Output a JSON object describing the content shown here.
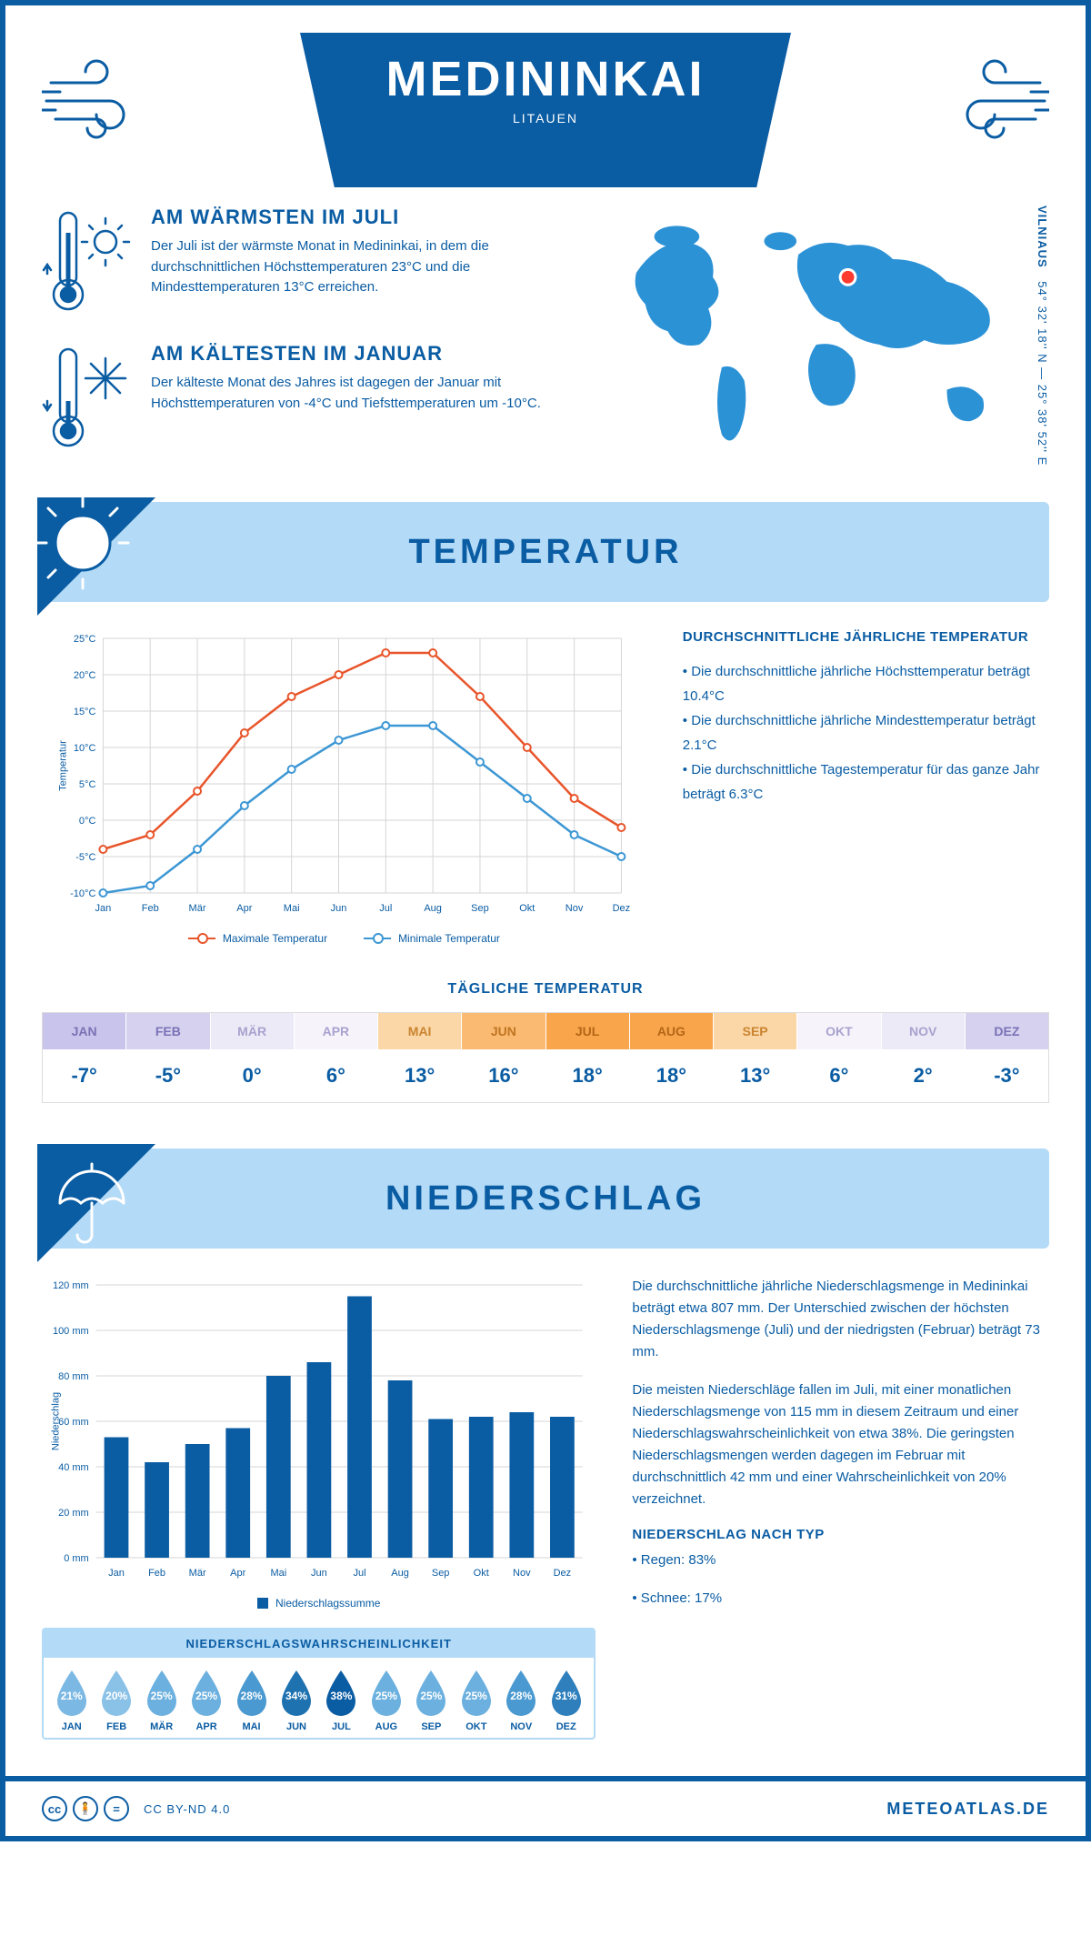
{
  "header": {
    "city": "MEDININKAI",
    "country": "LITAUEN",
    "coords_line": "54° 32' 18'' N — 25° 38' 52'' E",
    "city_label": "VILNIAUS"
  },
  "colors": {
    "brand": "#0a5ca3",
    "light_blue": "#b3daf6",
    "map_fill": "#2c92d6",
    "marker": "#ff3b2f",
    "max_line": "#e8552b",
    "min_line": "#3d97d4",
    "grid": "#d5d5d5",
    "bar": "#0a5ca3"
  },
  "facts": {
    "warm": {
      "title": "AM WÄRMSTEN IM JULI",
      "body": "Der Juli ist der wärmste Monat in Medininkai, in dem die durchschnittlichen Höchsttemperaturen 23°C und die Mindesttemperaturen 13°C erreichen."
    },
    "cold": {
      "title": "AM KÄLTESTEN IM JANUAR",
      "body": "Der kälteste Monat des Jahres ist dagegen der Januar mit Höchsttemperaturen von -4°C und Tiefsttemperaturen um -10°C."
    }
  },
  "sections": {
    "temperature": "TEMPERATUR",
    "precipitation": "NIEDERSCHLAG"
  },
  "temp_chart": {
    "months": [
      "Jan",
      "Feb",
      "Mär",
      "Apr",
      "Mai",
      "Jun",
      "Jul",
      "Aug",
      "Sep",
      "Okt",
      "Nov",
      "Dez"
    ],
    "max": [
      -4,
      -2,
      4,
      12,
      17,
      20,
      23,
      23,
      17,
      10,
      3,
      -1
    ],
    "min": [
      -10,
      -9,
      -4,
      2,
      7,
      11,
      13,
      13,
      8,
      3,
      -2,
      -5
    ],
    "ylim": [
      -10,
      25
    ],
    "ytick_step": 5,
    "ylabel": "Temperatur",
    "legend_max": "Maximale Temperatur",
    "legend_min": "Minimale Temperatur"
  },
  "temp_text": {
    "title": "DURCHSCHNITTLICHE JÄHRLICHE TEMPERATUR",
    "b1": "• Die durchschnittliche jährliche Höchsttemperatur beträgt 10.4°C",
    "b2": "• Die durchschnittliche jährliche Mindesttemperatur beträgt 2.1°C",
    "b3": "• Die durchschnittliche Tagestemperatur für das ganze Jahr beträgt 6.3°C"
  },
  "daily": {
    "title": "TÄGLICHE TEMPERATUR",
    "months": [
      "JAN",
      "FEB",
      "MÄR",
      "APR",
      "MAI",
      "JUN",
      "JUL",
      "AUG",
      "SEP",
      "OKT",
      "NOV",
      "DEZ"
    ],
    "vals": [
      "-7°",
      "-5°",
      "0°",
      "6°",
      "13°",
      "16°",
      "18°",
      "18°",
      "13°",
      "6°",
      "2°",
      "-3°"
    ],
    "head_colors": [
      "#c9c4eb",
      "#d5d1ef",
      "#eceaf6",
      "#f6f4fa",
      "#fbd6a6",
      "#faba72",
      "#f8a54c",
      "#f8a54c",
      "#fbd6a6",
      "#f6f4fa",
      "#eceaf6",
      "#d5d1ef"
    ],
    "head_text_colors": [
      "#7a72b5",
      "#7a72b5",
      "#a8a2cf",
      "#a8a2cf",
      "#c98430",
      "#c07420",
      "#b56615",
      "#b56615",
      "#c98430",
      "#a8a2cf",
      "#a8a2cf",
      "#7a72b5"
    ]
  },
  "precip_chart": {
    "months": [
      "Jan",
      "Feb",
      "Mär",
      "Apr",
      "Mai",
      "Jun",
      "Jul",
      "Aug",
      "Sep",
      "Okt",
      "Nov",
      "Dez"
    ],
    "values": [
      53,
      42,
      50,
      57,
      80,
      86,
      115,
      78,
      61,
      62,
      64,
      62
    ],
    "ylim": [
      0,
      120
    ],
    "ytick_step": 20,
    "ylabel": "Niederschlag",
    "legend": "Niederschlagssumme"
  },
  "precip_text": {
    "p1": "Die durchschnittliche jährliche Niederschlagsmenge in Medininkai beträgt etwa 807 mm. Der Unterschied zwischen der höchsten Niederschlagsmenge (Juli) und der niedrigsten (Februar) beträgt 73 mm.",
    "p2": "Die meisten Niederschläge fallen im Juli, mit einer monatlichen Niederschlagsmenge von 115 mm in diesem Zeitraum und einer Niederschlagswahrscheinlichkeit von etwa 38%. Die geringsten Niederschlagsmengen werden dagegen im Februar mit durchschnittlich 42 mm und einer Wahrscheinlichkeit von 20% verzeichnet.",
    "type_title": "NIEDERSCHLAG NACH TYP",
    "type1": "• Regen: 83%",
    "type2": "• Schnee: 17%"
  },
  "prob": {
    "title": "NIEDERSCHLAGSWAHRSCHEINLICHKEIT",
    "months": [
      "JAN",
      "FEB",
      "MÄR",
      "APR",
      "MAI",
      "JUN",
      "JUL",
      "AUG",
      "SEP",
      "OKT",
      "NOV",
      "DEZ"
    ],
    "vals": [
      "21%",
      "20%",
      "25%",
      "25%",
      "28%",
      "34%",
      "38%",
      "25%",
      "25%",
      "25%",
      "28%",
      "31%"
    ],
    "colors": [
      "#7bb8e3",
      "#8ac1e7",
      "#6bb0df",
      "#6bb0df",
      "#4a99d0",
      "#1e72b0",
      "#0a5ca3",
      "#6bb0df",
      "#6bb0df",
      "#6bb0df",
      "#4a99d0",
      "#2e7fbc"
    ]
  },
  "footer": {
    "license": "CC BY-ND 4.0",
    "site": "METEOATLAS.DE"
  }
}
